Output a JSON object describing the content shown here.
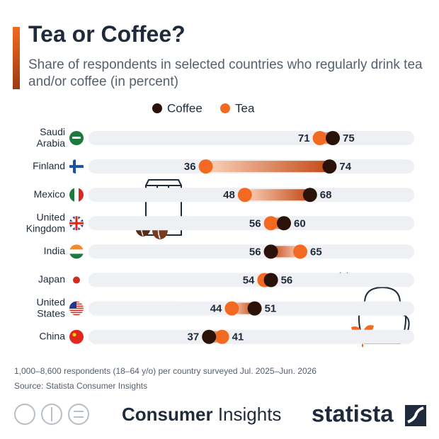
{
  "chart_data": {
    "type": "dumbbell",
    "title": "Tea or Coffee?",
    "subtitle": "Share of respondents in selected countries who regularly drink tea and/or coffee (in percent)",
    "categories": [
      "Saudi Arabia",
      "Finland",
      "Mexico",
      "United Kingdom",
      "India",
      "Japan",
      "United States",
      "China"
    ],
    "series": [
      {
        "name": "Coffee",
        "color": "#2b1209",
        "values": [
          75,
          74,
          68,
          60,
          56,
          56,
          51,
          37
        ]
      },
      {
        "name": "Tea",
        "color": "#f26a21",
        "values": [
          71,
          36,
          48,
          56,
          65,
          54,
          44,
          41
        ]
      }
    ],
    "xlim": [
      0,
      100
    ]
  },
  "footnote": "1,000–8,600 respondents (18–64 y/o) per country surveyed Jul. 2025–Jun. 2026",
  "source": "Source: Statista Consumer Insights",
  "brand": {
    "bold": "Consumer",
    "light": "Insights"
  },
  "logo": "statista"
}
